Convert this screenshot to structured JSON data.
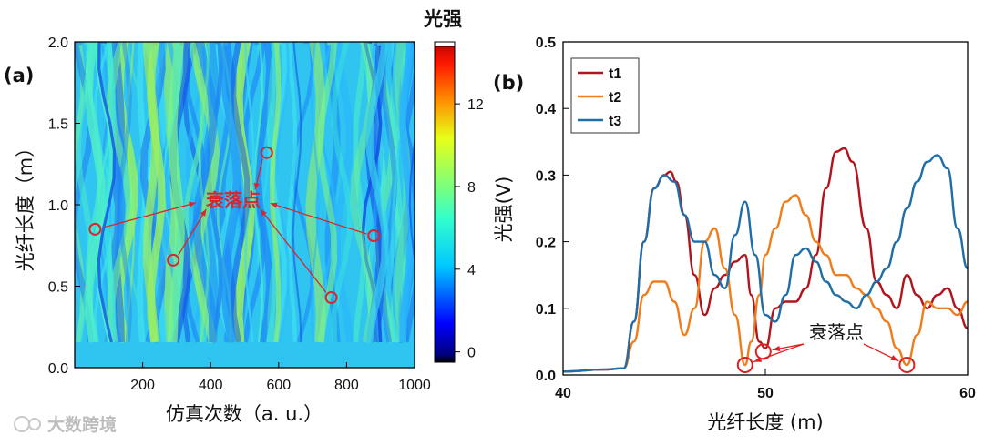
{
  "watermark": "大数跨境",
  "chart_data": [
    {
      "type": "heatmap",
      "panel_label": "(a)",
      "xlabel": "仿真次数（a. u.）",
      "ylabel": "光纤长度（m）",
      "xlim": [
        0,
        1000
      ],
      "ylim": [
        0.0,
        2.0
      ],
      "xticks": [
        "200",
        "400",
        "600",
        "800",
        "1000"
      ],
      "yticks": [
        "0.0",
        "0.5",
        "1.0",
        "1.5",
        "2.0"
      ],
      "colorbar": {
        "title": "光强",
        "range": [
          -0.5,
          15
        ],
        "ticks": [
          "0",
          "4",
          "8",
          "12"
        ],
        "colormap": "jet"
      },
      "annotation": "衰落点",
      "fading_points": [
        {
          "x": 60,
          "y": 0.85
        },
        {
          "x": 290,
          "y": 0.66
        },
        {
          "x": 565,
          "y": 1.32
        },
        {
          "x": 755,
          "y": 0.43
        },
        {
          "x": 880,
          "y": 0.81
        }
      ]
    },
    {
      "type": "line",
      "panel_label": "(b)",
      "xlabel": "光纤长度 (m)",
      "ylabel": "光强(V)",
      "xlim": [
        40,
        60
      ],
      "ylim": [
        0.0,
        0.5
      ],
      "xticks": [
        "40",
        "50",
        "60"
      ],
      "yticks": [
        "0.0",
        "0.1",
        "0.2",
        "0.3",
        "0.4",
        "0.5"
      ],
      "legend_position": "top-left",
      "annotation": "衰落点",
      "fading_points": [
        {
          "x": 49.0,
          "y": 0.015
        },
        {
          "x": 49.9,
          "y": 0.035
        },
        {
          "x": 57.0,
          "y": 0.015
        }
      ],
      "series": [
        {
          "name": "t1",
          "color": "#b3141c",
          "x": [
            40,
            42,
            43,
            43.5,
            44,
            44.5,
            45,
            45.3,
            45.6,
            46,
            46.5,
            47,
            47.5,
            48,
            48.5,
            49,
            49.3,
            49.7,
            50,
            50.5,
            51,
            51.5,
            52,
            52.5,
            53,
            53.5,
            53.9,
            54.3,
            55,
            55.5,
            56,
            56.5,
            57,
            57.5,
            58,
            58.5,
            59,
            59.5,
            60
          ],
          "y": [
            0.005,
            0.008,
            0.01,
            0.08,
            0.2,
            0.28,
            0.3,
            0.305,
            0.29,
            0.24,
            0.15,
            0.09,
            0.13,
            0.15,
            0.17,
            0.18,
            0.12,
            0.05,
            0.04,
            0.1,
            0.11,
            0.11,
            0.13,
            0.18,
            0.28,
            0.335,
            0.34,
            0.32,
            0.22,
            0.14,
            0.12,
            0.1,
            0.15,
            0.12,
            0.1,
            0.12,
            0.13,
            0.1,
            0.07
          ]
        },
        {
          "name": "t2",
          "color": "#f07d1c",
          "x": [
            40,
            42,
            43,
            43.5,
            44,
            44.5,
            45,
            45.5,
            46,
            46.5,
            47,
            47.5,
            48,
            48.5,
            49,
            49.3,
            49.7,
            50,
            50.5,
            51,
            51.5,
            52,
            52.5,
            53,
            53.5,
            54,
            54.5,
            55,
            55.5,
            56,
            56.5,
            57,
            57.5,
            58,
            58.5,
            59,
            59.5,
            60
          ],
          "y": [
            0.005,
            0.008,
            0.01,
            0.05,
            0.12,
            0.14,
            0.14,
            0.11,
            0.06,
            0.1,
            0.2,
            0.22,
            0.16,
            0.09,
            0.015,
            0.05,
            0.12,
            0.18,
            0.22,
            0.26,
            0.27,
            0.24,
            0.2,
            0.18,
            0.15,
            0.15,
            0.13,
            0.12,
            0.1,
            0.08,
            0.04,
            0.015,
            0.06,
            0.11,
            0.1,
            0.1,
            0.09,
            0.11
          ]
        },
        {
          "name": "t3",
          "color": "#1f6ea8",
          "x": [
            40,
            42,
            43,
            43.5,
            44,
            44.5,
            45,
            45.5,
            46,
            46.5,
            47,
            47.5,
            48,
            48.5,
            49,
            49.5,
            50,
            50.5,
            51,
            51.5,
            52,
            52.5,
            53,
            53.5,
            54,
            54.5,
            55,
            55.5,
            56,
            56.5,
            57,
            57.5,
            58,
            58.5,
            59,
            59.5,
            60
          ],
          "y": [
            0.005,
            0.008,
            0.01,
            0.08,
            0.2,
            0.28,
            0.3,
            0.29,
            0.24,
            0.2,
            0.2,
            0.15,
            0.13,
            0.21,
            0.26,
            0.18,
            0.09,
            0.08,
            0.12,
            0.18,
            0.19,
            0.17,
            0.14,
            0.12,
            0.11,
            0.1,
            0.12,
            0.14,
            0.16,
            0.2,
            0.25,
            0.29,
            0.32,
            0.33,
            0.31,
            0.22,
            0.16
          ]
        }
      ]
    }
  ]
}
